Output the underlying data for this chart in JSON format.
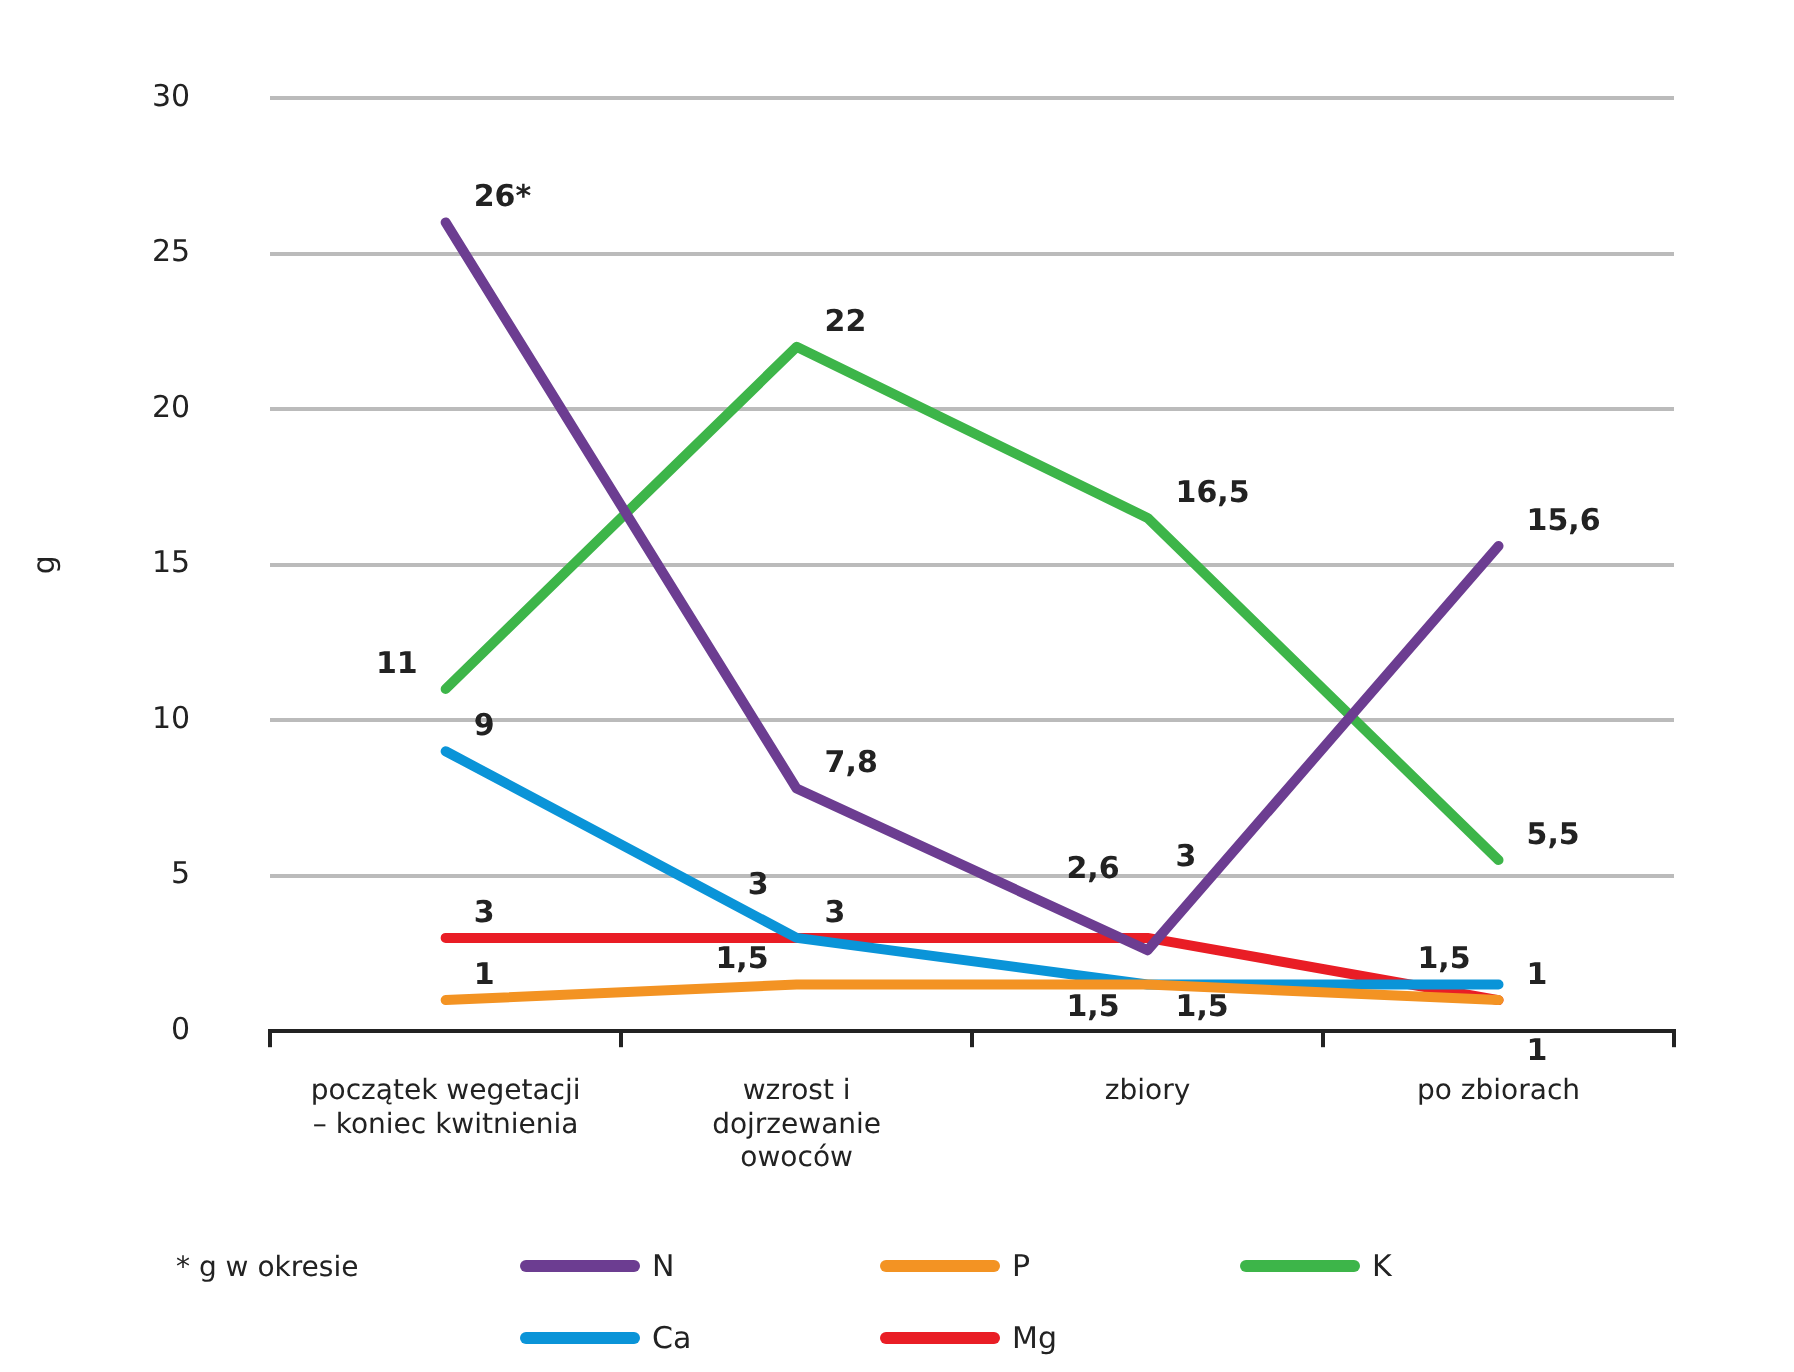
{
  "chart_data": {
    "type": "line",
    "ylabel": "g",
    "categories": [
      "początek wegetacji – koniec kwitnienia",
      "wzrost i dojrzewanie owoców",
      "zbiory",
      "po zbiorach"
    ],
    "series": [
      {
        "name": "N",
        "color": "#6c3d91",
        "values": [
          26,
          7.8,
          2.6,
          15.6
        ],
        "value_labels": [
          "26*",
          "7,8",
          "2,6",
          "15,6"
        ]
      },
      {
        "name": "P",
        "color": "#f39323",
        "values": [
          1,
          1.5,
          1.5,
          1
        ],
        "value_labels": [
          "1",
          "1,5",
          "1,5",
          "1"
        ]
      },
      {
        "name": "K",
        "color": "#3db549",
        "values": [
          11,
          22,
          16.5,
          5.5
        ],
        "value_labels": [
          "11",
          "22",
          "16,5",
          "5,5"
        ]
      },
      {
        "name": "Ca",
        "color": "#0a94d8",
        "values": [
          9,
          3,
          1.5,
          1.5
        ],
        "value_labels": [
          "9",
          "3",
          "1,5",
          "1,5"
        ]
      },
      {
        "name": "Mg",
        "color": "#e91d25",
        "values": [
          3,
          3,
          3,
          1
        ],
        "value_labels": [
          "3",
          "3",
          "3",
          "1"
        ]
      }
    ],
    "ylim": [
      0,
      30
    ],
    "yticks": [
      0,
      5,
      10,
      15,
      20,
      25,
      30
    ],
    "grid": "y",
    "legend": "bottom",
    "marker": "none",
    "line_style": "solid",
    "annotations": [
      "* g w okresie"
    ]
  }
}
